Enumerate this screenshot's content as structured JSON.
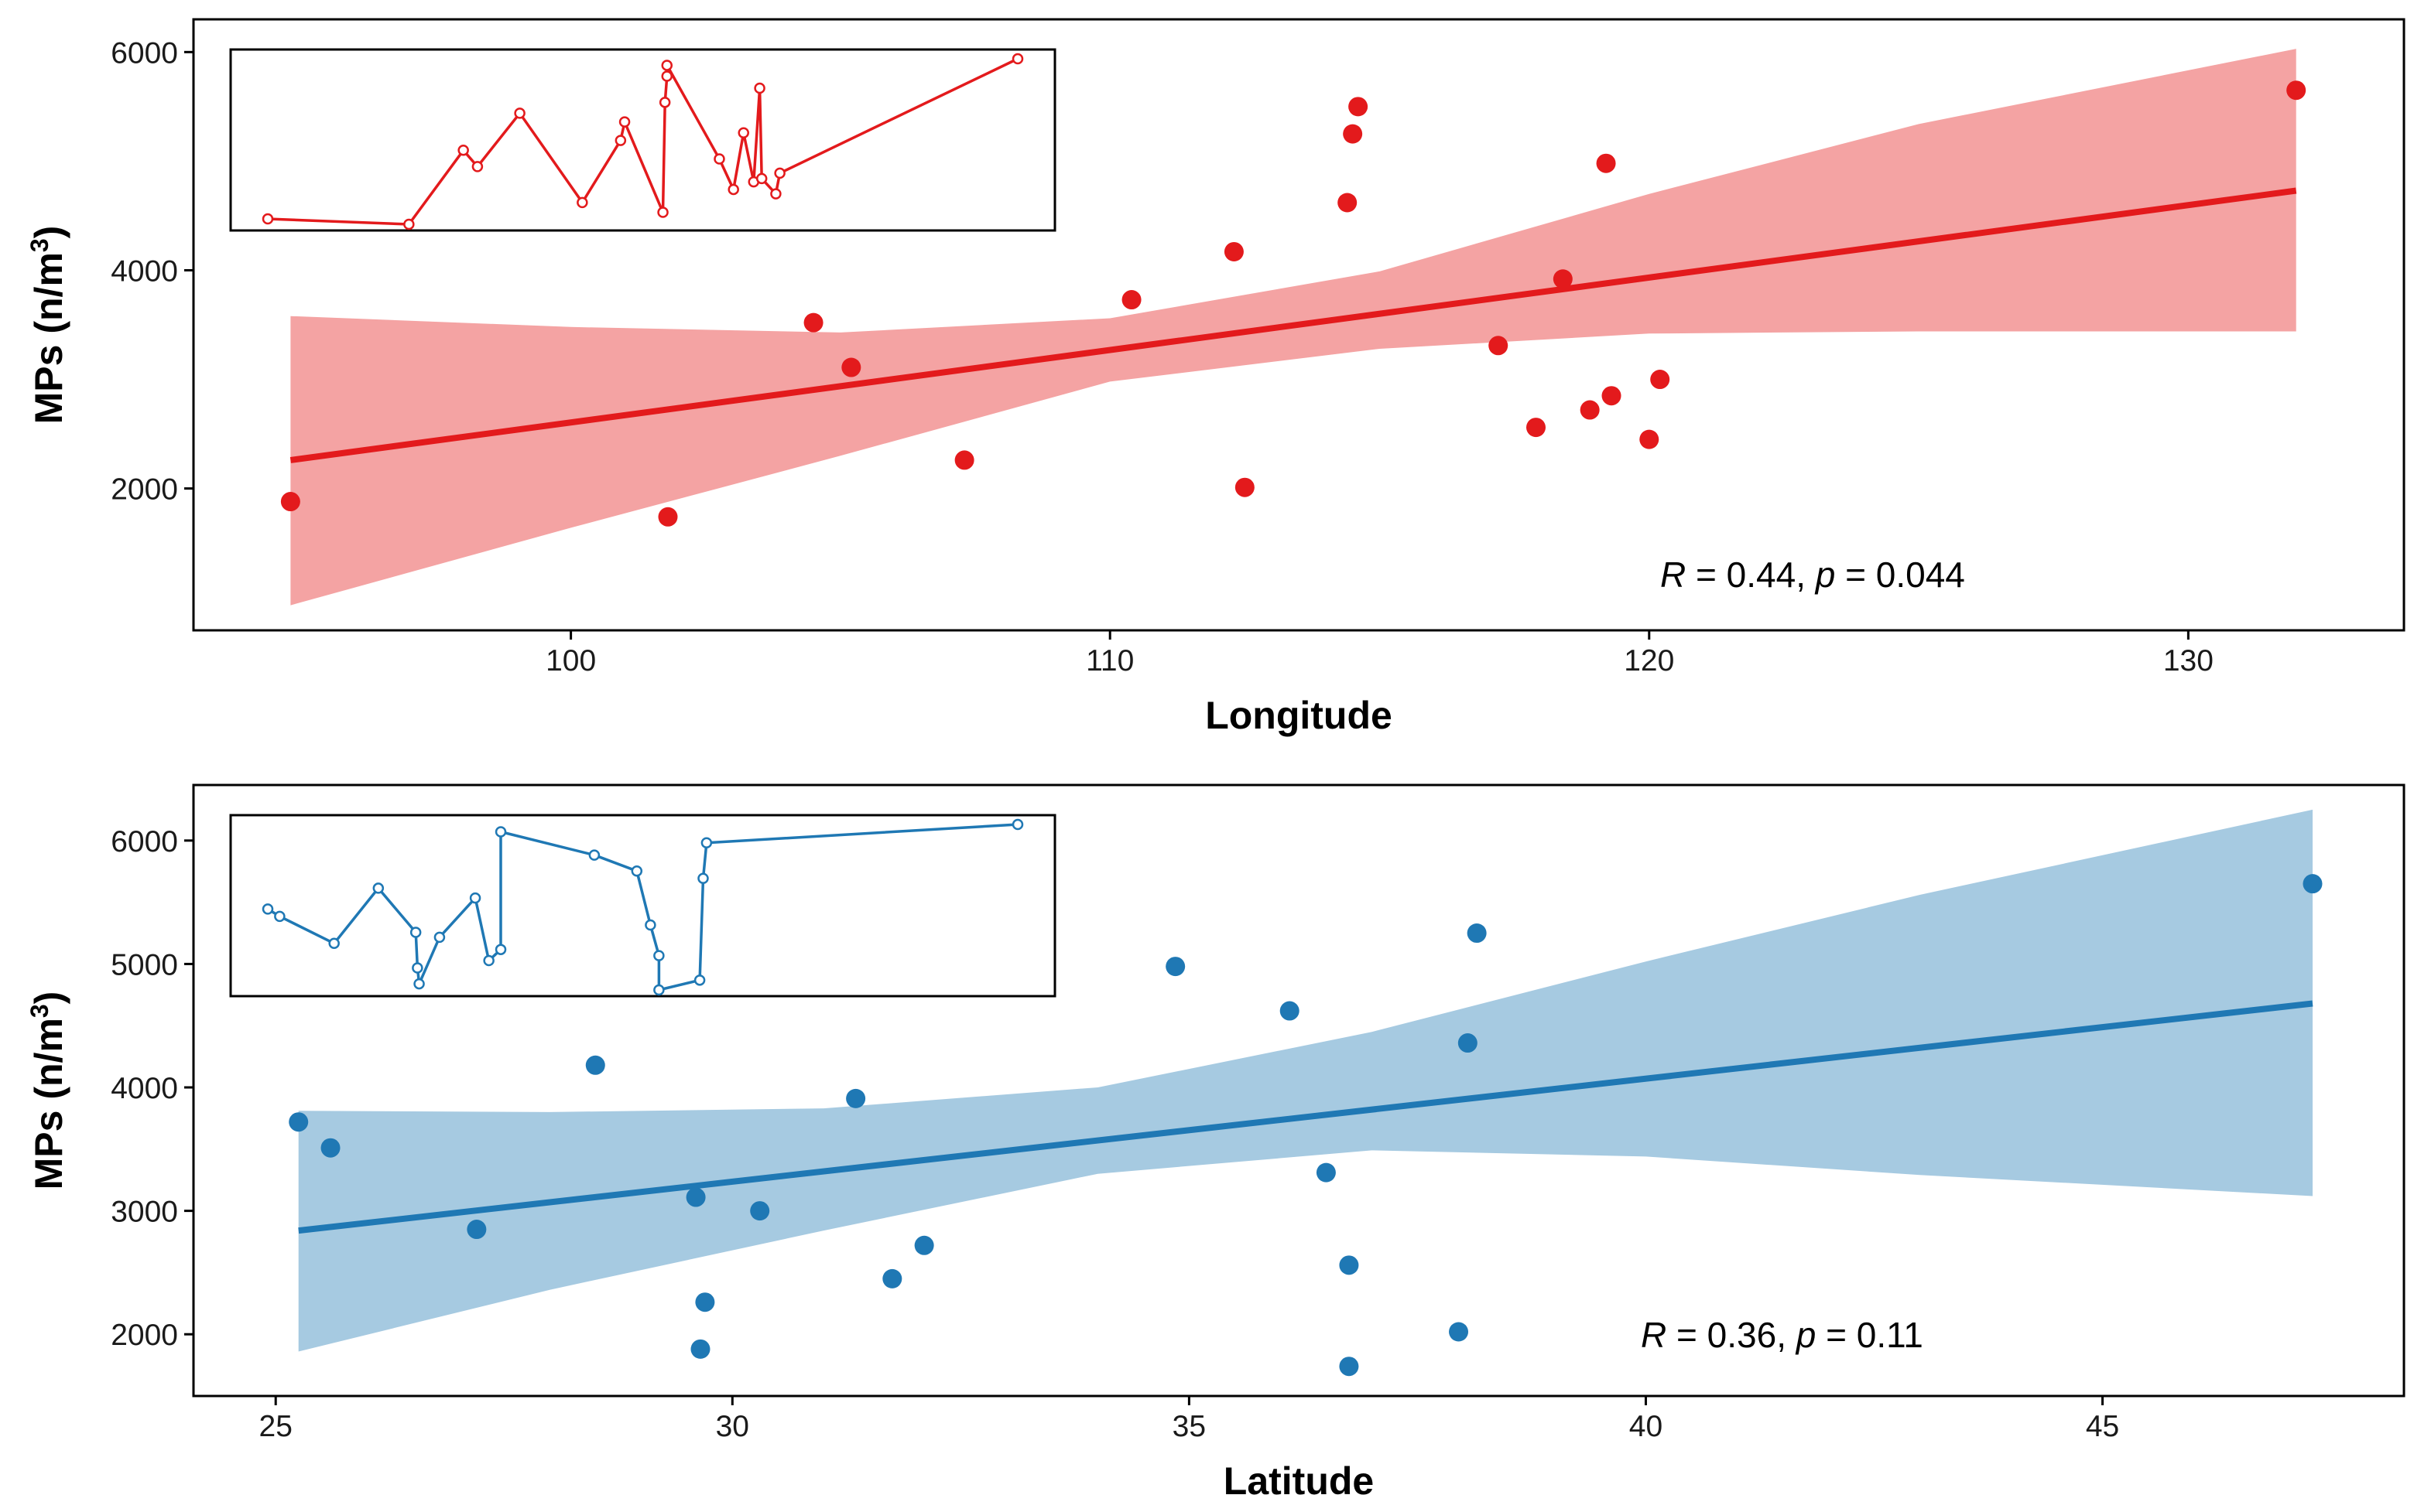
{
  "chart_data": [
    {
      "type": "scatter",
      "xlabel": "Longitude",
      "ylabel": {
        "main": "MPs (n/m",
        "sup": "3",
        "end": ")"
      },
      "xlim": [
        93,
        134
      ],
      "ylim": [
        700,
        6300
      ],
      "xticks": [
        100,
        110,
        120,
        130
      ],
      "yticks": [
        2000,
        4000,
        6000
      ],
      "color": "#e31a1c",
      "band_color": "#f4a3a3",
      "annotation": {
        "r_sym": "R",
        "r_text": " = 0.44, ",
        "p_sym": "p",
        "p_text": " = 0.044",
        "x": 120,
        "y": 1200
      },
      "fit": {
        "x": [
          94.8,
          132
        ],
        "y": [
          2260,
          4730
        ]
      },
      "band": {
        "x": [
          94.8,
          100,
          105,
          110,
          115,
          120,
          125,
          132
        ],
        "upper": [
          3580,
          3480,
          3430,
          3560,
          3990,
          4700,
          5340,
          6030
        ],
        "lower": [
          930,
          1640,
          2300,
          2980,
          3280,
          3420,
          3440,
          3440
        ]
      },
      "points": {
        "x": [
          94.8,
          101.8,
          104.5,
          105.2,
          107.3,
          110.4,
          112.3,
          112.5,
          114.4,
          114.5,
          114.6,
          117.2,
          117.9,
          118.4,
          118.9,
          119.2,
          119.3,
          120.0,
          120.2,
          132.0
        ],
        "y": [
          1880,
          1740,
          3520,
          3110,
          2260,
          3730,
          4170,
          2010,
          4620,
          5250,
          5500,
          3310,
          2560,
          3920,
          2720,
          4980,
          2850,
          2450,
          3000,
          5650
        ]
      },
      "inset_line": {
        "y": [
          4450,
          4400,
          5080,
          4930,
          5420,
          4600,
          5170,
          5340,
          4510,
          5520,
          5760,
          5860,
          5000,
          4720,
          5240,
          4790,
          5650,
          4820,
          4680,
          4870,
          5920
        ]
      }
    },
    {
      "type": "scatter",
      "xlabel": "Latitude",
      "ylabel": {
        "main": "MPs (n/m",
        "sup": "3",
        "end": ")"
      },
      "xlim": [
        24.1,
        48.3
      ],
      "ylim": [
        1500,
        6450
      ],
      "xticks": [
        25,
        30,
        35,
        40,
        45
      ],
      "yticks": [
        2000,
        3000,
        4000,
        5000,
        6000
      ],
      "color": "#1f78b4",
      "band_color": "#a6cae1",
      "annotation": {
        "r_sym": "R",
        "r_text": " = 0.36, ",
        "p_sym": "p",
        "p_text": " = 0.11",
        "x": 40,
        "y": 2000
      },
      "fit": {
        "x": [
          25.25,
          47.3
        ],
        "y": [
          2840,
          4680
        ]
      },
      "band": {
        "x": [
          25.25,
          28,
          31,
          34,
          37,
          40,
          43,
          47.3
        ],
        "upper": [
          3810,
          3800,
          3830,
          4000,
          4450,
          5020,
          5560,
          6250
        ],
        "lower": [
          1860,
          2360,
          2840,
          3300,
          3490,
          3440,
          3290,
          3120
        ]
      },
      "points": {
        "x": [
          25.25,
          25.6,
          27.2,
          28.5,
          29.6,
          29.65,
          29.7,
          30.3,
          31.35,
          31.75,
          32.1,
          34.85,
          36.1,
          36.5,
          36.75,
          36.75,
          37.95,
          38.05,
          38.15,
          47.3
        ],
        "y": [
          3720,
          3510,
          2850,
          4180,
          3110,
          1880,
          2260,
          3000,
          3910,
          2450,
          2720,
          4980,
          4620,
          3310,
          1740,
          2560,
          2020,
          4360,
          5250,
          5650
        ]
      },
      "inset_line": {
        "y": [
          5460,
          5400,
          5180,
          5630,
          5270,
          4980,
          4850,
          5230,
          5550,
          5040,
          5130,
          6090,
          5900,
          5770,
          5330,
          5080,
          4800,
          4880,
          5710,
          6000,
          6150
        ]
      }
    }
  ]
}
